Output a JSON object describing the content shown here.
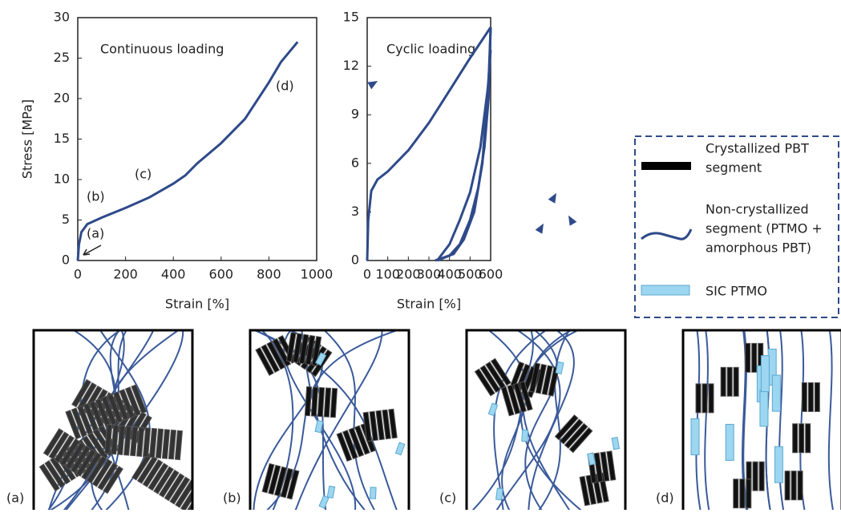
{
  "chart_data": [
    {
      "type": "line",
      "title": "Continuous loading",
      "x_label": "Strain [%]",
      "y_label": "Stress [MPa]",
      "x": [
        0,
        5,
        15,
        40,
        100,
        200,
        300,
        400,
        450,
        500,
        600,
        700,
        800,
        850,
        920
      ],
      "values": [
        0,
        2,
        3.5,
        4.5,
        5.3,
        6.5,
        7.8,
        9.5,
        10.5,
        12,
        14.5,
        17.5,
        22,
        24.5,
        27
      ],
      "color": "#2e4a8a",
      "xlim": [
        0,
        1000
      ],
      "xticks": [
        0,
        200,
        400,
        600,
        800,
        1000
      ],
      "ylim": [
        0,
        30
      ],
      "yticks": [
        0,
        5,
        10,
        15,
        20,
        25,
        30
      ],
      "annotations": [
        "(a)",
        "(b)",
        "(c)",
        "(d)"
      ]
    },
    {
      "type": "line",
      "title": "Cyclic loading",
      "x_label": "Strain [%]",
      "series": [
        {
          "color": "#2e4a8a",
          "x": [
            0,
            5,
            20,
            50,
            100,
            200,
            300,
            400,
            500,
            600
          ],
          "values": [
            0,
            2.5,
            4.3,
            5,
            5.5,
            6.8,
            8.5,
            10.5,
            12.5,
            14.4
          ]
        },
        {
          "color": "#2e4a8a",
          "x": [
            600,
            590,
            570,
            540,
            500,
            450,
            400,
            340
          ],
          "values": [
            14.4,
            10,
            7,
            4.5,
            2.5,
            1,
            0.3,
            0
          ]
        },
        {
          "color": "#2e4a8a",
          "x": [
            340,
            400,
            450,
            500,
            550,
            590,
            600
          ],
          "values": [
            0,
            1,
            2.5,
            4.2,
            7,
            11,
            14.4
          ]
        },
        {
          "color": "#2e4a8a",
          "x": [
            600,
            560,
            520,
            470,
            420,
            330
          ],
          "values": [
            13,
            6,
            3,
            1.3,
            0.4,
            0
          ]
        }
      ],
      "xlim": [
        0,
        600
      ],
      "xticks": [
        0,
        100,
        200,
        300,
        400,
        500,
        600
      ],
      "ylim": [
        0,
        15
      ],
      "yticks": [
        0,
        3,
        6,
        9,
        12,
        15
      ]
    }
  ],
  "legend": {
    "items": [
      {
        "lines": [
          "Crystallized PBT",
          "segment"
        ]
      },
      {
        "lines": [
          "Non-crystallized",
          "segment (PTMO +",
          "amorphous PBT)"
        ]
      },
      {
        "lines": [
          "SIC PTMO"
        ]
      }
    ]
  },
  "panels": [
    {
      "label": "(a)"
    },
    {
      "label": "(b)"
    },
    {
      "label": "(c)"
    },
    {
      "label": "(d)"
    }
  ]
}
